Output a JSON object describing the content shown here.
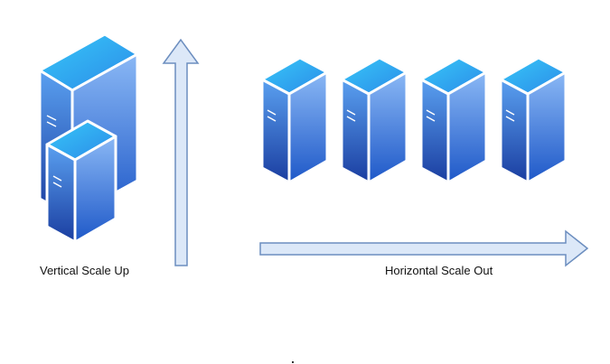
{
  "labels": {
    "vertical": "Vertical Scale Up",
    "horizontal": "Horizontal Scale Out"
  },
  "colors": {
    "server_top": "#3aa3f2",
    "server_front_top": "#5aa0f0",
    "server_front_bottom": "#1a3da0",
    "server_side_top": "#8ab8f5",
    "server_side_bottom": "#1e58c8",
    "server_outline": "#ffffff",
    "arrow_fill": "#dce8f8",
    "arrow_stroke": "#6c8ebf"
  },
  "icons": {
    "large_server": "server-icon",
    "small_server": "server-icon",
    "scale_out_servers": [
      "server-icon",
      "server-icon",
      "server-icon",
      "server-icon"
    ]
  }
}
